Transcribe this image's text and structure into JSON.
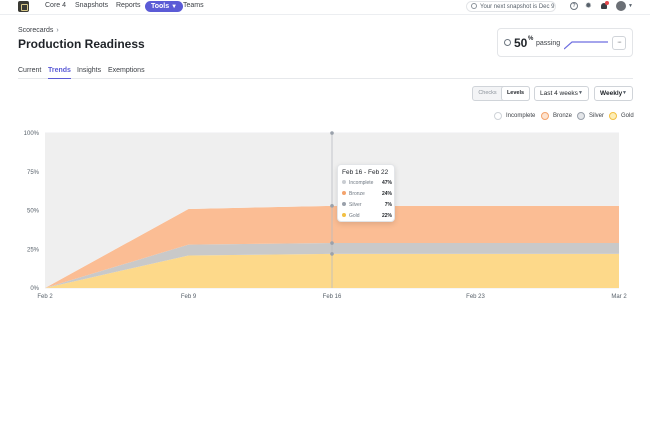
{
  "nav": {
    "items": [
      "Core 4",
      "Snapshots",
      "Reports",
      "Tools",
      "Teams"
    ],
    "active": "Tools",
    "snapshot_notice": "Your next snapshot is Dec 9",
    "help_glyph": "?"
  },
  "header": {
    "breadcrumb": "Scorecards",
    "breadcrumb_sep": "›",
    "title": "Production Readiness"
  },
  "summary": {
    "value": "50",
    "unit": "%",
    "label": "passing",
    "more_glyph": "···"
  },
  "tabs": [
    "Current",
    "Trends",
    "Insights",
    "Exemptions"
  ],
  "active_tab": "Trends",
  "controls": {
    "mode_options": [
      "Checks",
      "Levels"
    ],
    "mode_selected": "Levels",
    "range": "Last 4 weeks",
    "period": "Weekly"
  },
  "legend": [
    {
      "name": "Incomplete",
      "color": "#cfd3d8"
    },
    {
      "name": "Bronze",
      "color": "#f4a36c"
    },
    {
      "name": "Silver",
      "color": "#9aa1ab"
    },
    {
      "name": "Gold",
      "color": "#f2c043"
    }
  ],
  "tooltip": {
    "title": "Feb 16 - Feb 22",
    "rows": [
      {
        "name": "Incomplete",
        "value": "47%",
        "color": "#c9cdd2"
      },
      {
        "name": "Bronze",
        "value": "24%",
        "color": "#f4a36c"
      },
      {
        "name": "Silver",
        "value": "7%",
        "color": "#9aa1ab"
      },
      {
        "name": "Gold",
        "value": "22%",
        "color": "#f2c043"
      }
    ]
  },
  "chart_data": {
    "type": "area",
    "stacked": true,
    "x": [
      "Feb 2",
      "Feb 9",
      "Feb 16",
      "Feb 23",
      "Mar 2"
    ],
    "ylim": [
      0,
      100
    ],
    "yticks": [
      "0%",
      "25%",
      "50%",
      "75%",
      "100%"
    ],
    "hover_index": 2,
    "series": [
      {
        "name": "Gold",
        "color": "#fdd98a",
        "values": [
          0,
          21,
          22,
          22,
          22
        ]
      },
      {
        "name": "Silver",
        "color": "#c9c9c9",
        "values": [
          0,
          7,
          7,
          7,
          7
        ]
      },
      {
        "name": "Bronze",
        "color": "#fbbd94",
        "values": [
          0,
          23,
          24,
          24,
          24
        ]
      },
      {
        "name": "Incomplete",
        "color": "#efefef",
        "values": [
          100,
          49,
          47,
          47,
          47
        ]
      }
    ]
  }
}
